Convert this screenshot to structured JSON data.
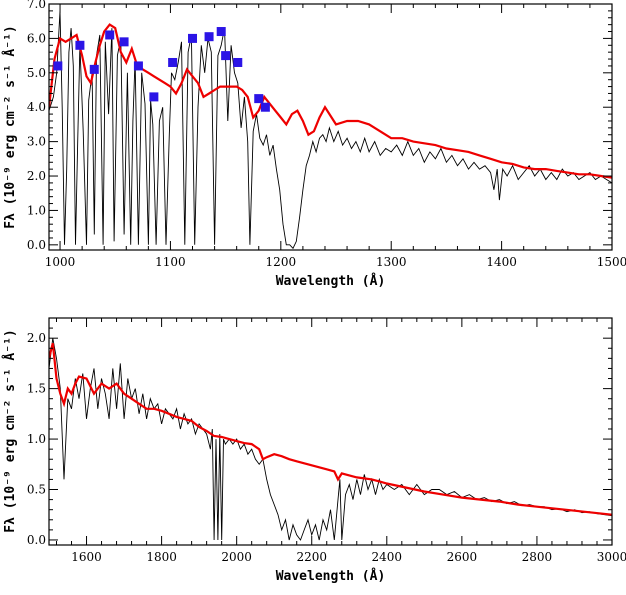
{
  "chart_data": [
    {
      "type": "line",
      "xlabel": "Wavelength (Å)",
      "ylabel": "Fλ (10⁻⁹ erg cm⁻² s⁻¹ Å⁻¹)",
      "xlim": [
        990,
        1500
      ],
      "ylim": [
        -0.15,
        7.0
      ],
      "xticks": [
        1000,
        1100,
        1200,
        1300,
        1400,
        1500
      ],
      "xtick_labels": [
        "1000",
        "1100",
        "1200",
        "1300",
        "1400",
        "1500"
      ],
      "yticks": [
        0.0,
        1.0,
        2.0,
        3.0,
        4.0,
        5.0,
        6.0,
        7.0
      ],
      "ytick_labels": [
        "0.0",
        "1.0",
        "2.0",
        "3.0",
        "4.0",
        "5.0",
        "6.0",
        "7.0"
      ],
      "grid": false,
      "series": [
        {
          "color": "#000000",
          "x": [
            990,
            994,
            997,
            1000,
            1002,
            1004,
            1006,
            1008,
            1010,
            1012,
            1014,
            1016,
            1018,
            1021,
            1024,
            1026,
            1029,
            1031,
            1033,
            1036,
            1039,
            1041,
            1044,
            1047,
            1049,
            1052,
            1055,
            1058,
            1061,
            1064,
            1066,
            1068,
            1071,
            1074,
            1077,
            1080,
            1082,
            1084,
            1087,
            1090,
            1093,
            1096,
            1099,
            1101,
            1104,
            1107,
            1110,
            1113,
            1116,
            1119,
            1122,
            1125,
            1128,
            1131,
            1134,
            1137,
            1140,
            1143,
            1146,
            1149,
            1152,
            1155,
            1158,
            1161,
            1164,
            1167,
            1170,
            1172,
            1175,
            1178,
            1181,
            1184,
            1187,
            1190,
            1193,
            1196,
            1199,
            1202,
            1205,
            1208,
            1211,
            1214,
            1217,
            1220,
            1223,
            1226,
            1229,
            1232,
            1235,
            1238,
            1241,
            1244,
            1248,
            1252,
            1256,
            1260,
            1264,
            1268,
            1272,
            1276,
            1280,
            1285,
            1290,
            1295,
            1300,
            1305,
            1310,
            1315,
            1320,
            1325,
            1330,
            1335,
            1340,
            1345,
            1350,
            1355,
            1360,
            1365,
            1370,
            1375,
            1380,
            1385,
            1390,
            1393,
            1396,
            1398,
            1401,
            1405,
            1410,
            1415,
            1420,
            1425,
            1430,
            1435,
            1440,
            1445,
            1450,
            1455,
            1460,
            1465,
            1470,
            1475,
            1480,
            1485,
            1490,
            1495,
            1500
          ],
          "y": [
            3.9,
            4.3,
            5.0,
            6.8,
            4.0,
            0.0,
            2.2,
            5.6,
            6.3,
            5.2,
            0.0,
            3.0,
            5.8,
            3.3,
            0.0,
            4.2,
            5.0,
            0.3,
            5.5,
            6.1,
            0.0,
            5.9,
            3.8,
            6.3,
            0.1,
            5.5,
            6.0,
            0.3,
            5.0,
            0.0,
            3.6,
            5.4,
            0.0,
            5.0,
            4.1,
            0.0,
            4.2,
            3.5,
            0.0,
            3.6,
            4.0,
            0.0,
            3.2,
            5.0,
            4.8,
            5.3,
            5.9,
            0.0,
            5.6,
            6.1,
            0.0,
            4.0,
            5.8,
            5.0,
            6.0,
            5.6,
            0.0,
            5.5,
            5.8,
            6.3,
            3.6,
            5.8,
            5.0,
            4.7,
            3.4,
            4.3,
            3.0,
            0.0,
            3.3,
            3.8,
            3.1,
            2.9,
            3.2,
            2.6,
            2.9,
            2.2,
            1.6,
            0.6,
            0.0,
            0.0,
            -0.1,
            0.1,
            0.8,
            1.6,
            2.3,
            2.6,
            3.0,
            2.7,
            3.1,
            3.2,
            3.0,
            3.4,
            3.0,
            3.3,
            2.9,
            3.1,
            2.8,
            3.0,
            2.7,
            3.1,
            2.7,
            3.0,
            2.6,
            2.8,
            2.7,
            2.9,
            2.6,
            3.0,
            2.6,
            2.8,
            2.4,
            2.7,
            2.5,
            2.8,
            2.4,
            2.6,
            2.3,
            2.5,
            2.2,
            2.4,
            2.2,
            2.3,
            2.1,
            1.6,
            2.2,
            1.3,
            2.2,
            2.0,
            2.3,
            1.9,
            2.1,
            2.3,
            2.0,
            2.2,
            1.9,
            2.1,
            1.9,
            2.2,
            2.0,
            2.1,
            1.9,
            2.0,
            2.1,
            1.9,
            2.0,
            1.9,
            1.8
          ]
        },
        {
          "color": "#ee0000",
          "x": [
            990,
            995,
            1000,
            1005,
            1010,
            1015,
            1020,
            1024,
            1028,
            1032,
            1036,
            1040,
            1045,
            1050,
            1055,
            1060,
            1065,
            1070,
            1075,
            1080,
            1085,
            1090,
            1095,
            1100,
            1105,
            1110,
            1115,
            1120,
            1125,
            1130,
            1135,
            1140,
            1145,
            1150,
            1155,
            1160,
            1165,
            1170,
            1175,
            1180,
            1185,
            1190,
            1195,
            1200,
            1205,
            1210,
            1215,
            1220,
            1225,
            1230,
            1235,
            1240,
            1250,
            1260,
            1270,
            1280,
            1290,
            1300,
            1310,
            1320,
            1330,
            1340,
            1350,
            1360,
            1370,
            1380,
            1390,
            1400,
            1410,
            1420,
            1430,
            1440,
            1450,
            1460,
            1470,
            1480,
            1490,
            1500
          ],
          "y": [
            4.0,
            5.4,
            6.0,
            5.9,
            6.0,
            6.1,
            5.5,
            4.9,
            4.7,
            5.3,
            5.8,
            6.2,
            6.4,
            6.3,
            5.6,
            5.3,
            5.7,
            5.2,
            5.1,
            5.0,
            4.9,
            4.8,
            4.7,
            4.6,
            4.4,
            4.7,
            5.1,
            4.9,
            4.7,
            4.3,
            4.4,
            4.5,
            4.6,
            4.6,
            4.6,
            4.6,
            4.5,
            4.3,
            3.7,
            3.9,
            4.3,
            4.1,
            3.9,
            3.7,
            3.5,
            3.8,
            3.9,
            3.6,
            3.2,
            3.3,
            3.7,
            4.0,
            3.5,
            3.6,
            3.6,
            3.5,
            3.3,
            3.1,
            3.1,
            3.0,
            2.95,
            2.9,
            2.8,
            2.75,
            2.7,
            2.6,
            2.5,
            2.4,
            2.35,
            2.25,
            2.2,
            2.2,
            2.15,
            2.1,
            2.05,
            2.05,
            2.0,
            1.95
          ]
        }
      ],
      "markers": {
        "color": "#2b14e6",
        "x": [
          998,
          1018,
          1031,
          1045,
          1058,
          1071,
          1085,
          1102,
          1120,
          1135,
          1146,
          1150,
          1161,
          1180,
          1186
        ],
        "y": [
          5.2,
          5.8,
          5.1,
          6.1,
          5.9,
          5.2,
          4.3,
          5.3,
          6.0,
          6.05,
          6.2,
          5.5,
          5.3,
          4.25,
          4.0
        ]
      }
    },
    {
      "type": "line",
      "xlabel": "Wavelength (Å)",
      "ylabel": "Fλ (10⁻⁹ erg cm⁻² s⁻¹ Å⁻¹)",
      "xlim": [
        1500,
        3000
      ],
      "ylim": [
        -0.05,
        2.2
      ],
      "xticks": [
        1600,
        1800,
        2000,
        2200,
        2400,
        2600,
        2800,
        3000
      ],
      "xtick_labels": [
        "1600",
        "1800",
        "2000",
        "2200",
        "2400",
        "2600",
        "2800",
        "3000"
      ],
      "yticks": [
        0.0,
        0.5,
        1.0,
        1.5,
        2.0
      ],
      "ytick_labels": [
        "0.0",
        "0.5",
        "1.0",
        "1.5",
        "2.0"
      ],
      "grid": false,
      "series": [
        {
          "color": "#000000",
          "x": [
            1500,
            1510,
            1520,
            1530,
            1540,
            1550,
            1560,
            1570,
            1580,
            1590,
            1600,
            1610,
            1620,
            1630,
            1640,
            1650,
            1660,
            1670,
            1680,
            1690,
            1700,
            1710,
            1720,
            1730,
            1740,
            1750,
            1760,
            1770,
            1780,
            1790,
            1800,
            1810,
            1820,
            1830,
            1840,
            1850,
            1860,
            1870,
            1880,
            1890,
            1900,
            1910,
            1920,
            1930,
            1935,
            1940,
            1945,
            1950,
            1955,
            1960,
            1965,
            1970,
            1980,
            1990,
            2000,
            2010,
            2020,
            2030,
            2040,
            2050,
            2060,
            2070,
            2080,
            2090,
            2100,
            2110,
            2120,
            2130,
            2140,
            2150,
            2160,
            2170,
            2180,
            2190,
            2200,
            2210,
            2220,
            2230,
            2240,
            2250,
            2260,
            2270,
            2275,
            2280,
            2290,
            2300,
            2310,
            2320,
            2330,
            2340,
            2350,
            2360,
            2370,
            2380,
            2390,
            2400,
            2420,
            2440,
            2460,
            2480,
            2500,
            2520,
            2540,
            2560,
            2580,
            2600,
            2620,
            2640,
            2660,
            2680,
            2700,
            2720,
            2740,
            2760,
            2780,
            2800,
            2820,
            2840,
            2860,
            2880,
            2900,
            2920,
            2940,
            2960,
            2980,
            3000
          ],
          "y": [
            1.7,
            2.0,
            1.8,
            1.5,
            0.6,
            1.4,
            1.3,
            1.6,
            1.4,
            1.65,
            1.2,
            1.5,
            1.7,
            1.3,
            1.6,
            1.45,
            1.2,
            1.7,
            1.3,
            1.75,
            1.2,
            1.6,
            1.4,
            1.5,
            1.25,
            1.45,
            1.2,
            1.4,
            1.3,
            1.35,
            1.15,
            1.3,
            1.25,
            1.2,
            1.3,
            1.1,
            1.25,
            1.15,
            1.2,
            1.05,
            1.15,
            1.1,
            1.05,
            0.9,
            1.1,
            0.0,
            1.0,
            0.0,
            1.05,
            0.0,
            1.0,
            0.95,
            1.0,
            0.95,
            1.0,
            0.9,
            0.95,
            0.85,
            0.9,
            0.8,
            0.75,
            0.8,
            0.6,
            0.45,
            0.35,
            0.25,
            0.1,
            0.2,
            0.0,
            0.15,
            0.05,
            0.0,
            0.1,
            0.2,
            0.05,
            0.15,
            0.0,
            0.2,
            0.1,
            0.3,
            0.0,
            0.4,
            0.6,
            0.0,
            0.45,
            0.55,
            0.4,
            0.6,
            0.45,
            0.65,
            0.5,
            0.6,
            0.45,
            0.6,
            0.5,
            0.55,
            0.5,
            0.55,
            0.45,
            0.55,
            0.45,
            0.5,
            0.5,
            0.45,
            0.48,
            0.42,
            0.45,
            0.4,
            0.42,
            0.38,
            0.4,
            0.36,
            0.38,
            0.34,
            0.35,
            0.33,
            0.33,
            0.3,
            0.31,
            0.28,
            0.3,
            0.27,
            0.28,
            0.26,
            0.25,
            0.24
          ]
        },
        {
          "color": "#ee0000",
          "x": [
            1500,
            1510,
            1520,
            1530,
            1540,
            1550,
            1560,
            1570,
            1580,
            1600,
            1620,
            1640,
            1660,
            1680,
            1700,
            1720,
            1740,
            1760,
            1780,
            1800,
            1820,
            1840,
            1860,
            1880,
            1900,
            1920,
            1940,
            1960,
            1980,
            2000,
            2020,
            2040,
            2060,
            2070,
            2080,
            2100,
            2120,
            2140,
            2160,
            2180,
            2200,
            2220,
            2240,
            2260,
            2270,
            2280,
            2300,
            2320,
            2340,
            2360,
            2380,
            2400,
            2450,
            2500,
            2550,
            2600,
            2650,
            2700,
            2750,
            2800,
            2850,
            2900,
            2950,
            3000
          ],
          "y": [
            1.8,
            1.95,
            1.6,
            1.45,
            1.35,
            1.5,
            1.45,
            1.55,
            1.62,
            1.6,
            1.45,
            1.55,
            1.5,
            1.55,
            1.45,
            1.4,
            1.35,
            1.3,
            1.3,
            1.28,
            1.25,
            1.22,
            1.2,
            1.18,
            1.12,
            1.08,
            1.03,
            1.02,
            1.0,
            0.98,
            0.96,
            0.95,
            0.9,
            0.8,
            0.82,
            0.85,
            0.83,
            0.8,
            0.78,
            0.76,
            0.74,
            0.72,
            0.7,
            0.68,
            0.6,
            0.66,
            0.64,
            0.62,
            0.61,
            0.6,
            0.58,
            0.56,
            0.52,
            0.48,
            0.45,
            0.42,
            0.4,
            0.38,
            0.35,
            0.33,
            0.31,
            0.29,
            0.27,
            0.25
          ]
        }
      ]
    }
  ]
}
